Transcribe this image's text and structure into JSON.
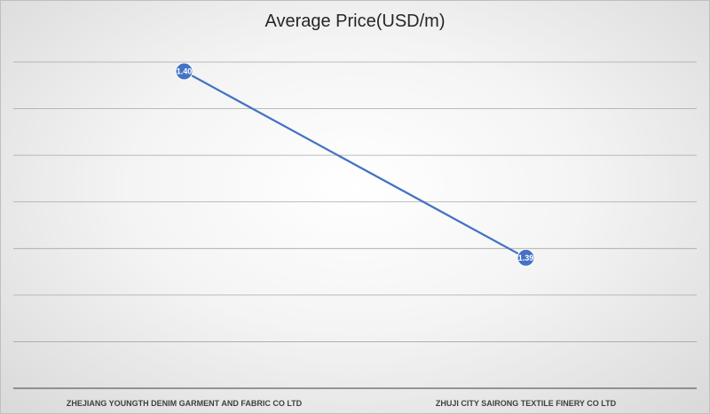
{
  "chart_data": {
    "type": "line",
    "title": "Average Price(USD/m)",
    "xlabel": "",
    "ylabel": "",
    "categories": [
      "ZHEJIANG YOUNGTH DENIM GARMENT AND FABRIC CO LTD",
      "ZHUJI CITY SAIRONG TEXTILE FINERY CO LTD"
    ],
    "series": [
      {
        "values": [
          1.4,
          1.39
        ],
        "labels": [
          "1.40",
          "1.39"
        ]
      }
    ],
    "ylim": [
      1.383,
      1.4015
    ],
    "y_tick_step": 0.0025,
    "grid": true,
    "legend": "none",
    "colors": {
      "series": "#4472c4",
      "grid": "#a6a6a6",
      "axis": "#404040"
    }
  }
}
